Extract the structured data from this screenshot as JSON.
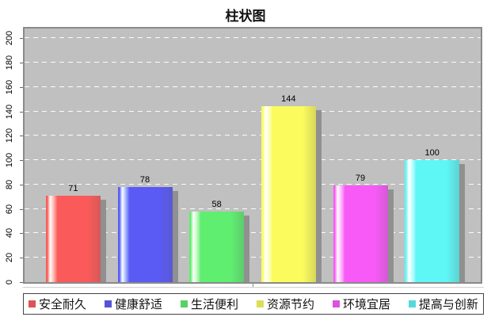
{
  "title": "柱状图",
  "palette": {
    "page-bg": "#ffffff",
    "title-text": "#111111",
    "plot-bg": "#c0c0c0",
    "plot-border": "#8a8a8a",
    "gridline": "#ffffff",
    "shadow": "#909090",
    "axis-text": "#000000",
    "value-label": "#000000",
    "legend-border": "#444444",
    "legend-text": "#111111",
    "underline": "#d0d0d0"
  },
  "y_axis": {
    "tick_values": [
      0,
      20,
      40,
      60,
      80,
      100,
      120,
      140,
      160,
      180,
      200
    ],
    "axis_top_units": 208
  },
  "chart_data": {
    "type": "bar",
    "title": "柱状图",
    "categories": [
      "安全耐久",
      "健康舒适",
      "生活便利",
      "资源节约",
      "环境宜居",
      "提高与创新"
    ],
    "values": [
      71,
      78,
      58,
      144,
      79,
      100
    ],
    "colors": [
      "#fb5a5a",
      "#5a5af5",
      "#5fee70",
      "#fbfb5d",
      "#f75af7",
      "#5ff6f6"
    ],
    "xlabel": "",
    "ylabel": "",
    "ylim": [
      0,
      200
    ],
    "y_tick_step": 20,
    "grid": "horizontal-white-dashed",
    "plot_background": "#c0c0c0",
    "bar_style": "cylinder-gradient-with-shadow",
    "legend_position": "bottom-boxed",
    "value_labels_shown": true
  }
}
